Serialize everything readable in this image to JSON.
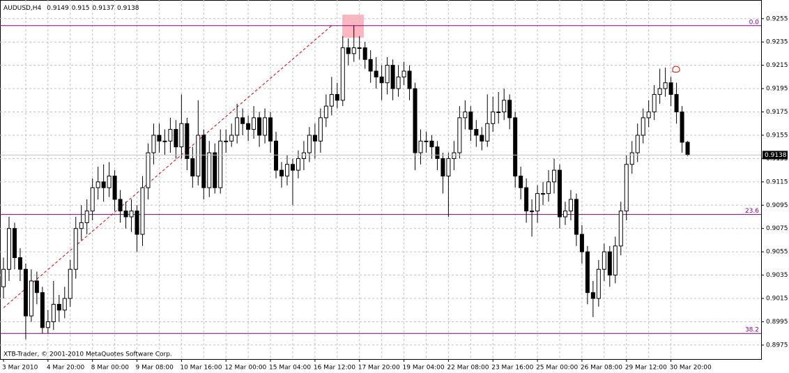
{
  "chart_data": {
    "type": "candlestick",
    "title": "AUDUSD,H4",
    "footer": "XTB-Trader, © 2001-2010 MetaQuotes Software Corp.",
    "categories": [
      "3 Mar 2010",
      null,
      null,
      null,
      null,
      null,
      null,
      null,
      "4 Mar 20:00",
      null,
      null,
      null,
      null,
      null,
      null,
      null,
      "8 Mar 00:00",
      null,
      null,
      null,
      null,
      null,
      null,
      null,
      "9 Mar 08:00",
      null,
      null,
      null,
      null,
      null,
      null,
      null,
      "10 Mar 16:00",
      null,
      null,
      null,
      null,
      null,
      null,
      null,
      "12 Mar 00:00",
      null,
      null,
      null,
      null,
      null,
      null,
      null,
      "15 Mar 04:00",
      null,
      null,
      null,
      null,
      null,
      null,
      null,
      "16 Mar 12:00",
      null,
      null,
      null,
      null,
      null,
      null,
      null,
      "17 Mar 20:00",
      null,
      null,
      null,
      null,
      null,
      null,
      null,
      "19 Mar 04:00",
      null,
      null,
      null,
      null,
      null,
      null,
      null,
      "22 Mar 08:00",
      null,
      null,
      null,
      null,
      null,
      null,
      null,
      "23 Mar 16:00",
      null,
      null,
      null,
      null,
      null,
      null,
      null,
      "25 Mar 00:00",
      null,
      null,
      null,
      null,
      null,
      null,
      null,
      "26 Mar 08:00",
      null,
      null,
      null,
      null,
      null,
      null,
      null,
      "29 Mar 12:00",
      null,
      null,
      null,
      null,
      null,
      null,
      null,
      "30 Mar 20:00",
      null,
      null,
      null
    ],
    "open": [
      0.9025,
      0.904,
      0.9075,
      0.905,
      0.904,
      0.9,
      0.903,
      0.902,
      0.899,
      0.8995,
      0.901,
      0.9005,
      0.9015,
      0.904,
      0.9075,
      0.908,
      0.909,
      0.911,
      0.9115,
      0.911,
      0.912,
      0.91,
      0.909,
      0.9085,
      0.909,
      0.907,
      0.911,
      0.914,
      0.9155,
      0.915,
      0.915,
      0.916,
      0.9145,
      0.9165,
      0.9135,
      0.912,
      0.9155,
      0.911,
      0.914,
      0.911,
      0.915,
      0.915,
      0.9155,
      0.917,
      0.9165,
      0.916,
      0.917,
      0.9155,
      0.917,
      0.915,
      0.9125,
      0.912,
      0.913,
      0.9125,
      0.9135,
      0.914,
      0.9155,
      0.915,
      0.917,
      0.918,
      0.919,
      0.9185,
      0.923,
      0.9225,
      0.923,
      0.923,
      0.922,
      0.921,
      0.9205,
      0.92,
      0.9215,
      0.9195,
      0.9205,
      0.921,
      0.9195,
      0.914,
      0.915,
      0.915,
      0.9145,
      0.9135,
      0.912,
      0.9135,
      0.914,
      0.917,
      0.9175,
      0.916,
      0.9155,
      0.915,
      0.9165,
      0.9175,
      0.9175,
      0.9185,
      0.917,
      0.912,
      0.911,
      0.909,
      0.909,
      0.9105,
      0.9105,
      0.9115,
      0.9125,
      0.9085,
      0.909,
      0.91,
      0.907,
      0.9055,
      0.902,
      0.9015,
      0.904,
      0.9055,
      0.9035,
      0.906,
      0.909,
      0.913,
      0.914,
      0.9155,
      0.917,
      0.9175,
      0.919,
      0.9195,
      0.92,
      0.919,
      0.9175,
      0.9149
    ],
    "high": [
      0.905,
      0.9085,
      0.908,
      0.9058,
      0.9045,
      0.904,
      0.9038,
      0.9025,
      0.9005,
      0.903,
      0.9018,
      0.9025,
      0.9048,
      0.9085,
      0.9095,
      0.91,
      0.9118,
      0.9128,
      0.913,
      0.9132,
      0.9125,
      0.9108,
      0.9098,
      0.91,
      0.9095,
      0.912,
      0.9148,
      0.9165,
      0.9165,
      0.916,
      0.917,
      0.9168,
      0.919,
      0.917,
      0.9145,
      0.9185,
      0.916,
      0.915,
      0.9148,
      0.916,
      0.916,
      0.9165,
      0.9182,
      0.9178,
      0.9172,
      0.918,
      0.9175,
      0.9178,
      0.9175,
      0.9158,
      0.9132,
      0.9138,
      0.9135,
      0.9142,
      0.915,
      0.9162,
      0.9165,
      0.9178,
      0.919,
      0.9205,
      0.92,
      0.924,
      0.9238,
      0.9249,
      0.924,
      0.9235,
      0.9228,
      0.9222,
      0.9215,
      0.9222,
      0.922,
      0.9215,
      0.9218,
      0.9215,
      0.92,
      0.916,
      0.9158,
      0.9155,
      0.915,
      0.914,
      0.914,
      0.915,
      0.918,
      0.9185,
      0.918,
      0.9168,
      0.9162,
      0.919,
      0.9188,
      0.9192,
      0.9195,
      0.919,
      0.9175,
      0.9128,
      0.9118,
      0.91,
      0.9112,
      0.9115,
      0.9125,
      0.9135,
      0.913,
      0.9098,
      0.9108,
      0.9105,
      0.9078,
      0.906,
      0.903,
      0.9048,
      0.9062,
      0.906,
      0.9068,
      0.9098,
      0.9138,
      0.915,
      0.9165,
      0.9178,
      0.9185,
      0.9198,
      0.9212,
      0.9213,
      0.9205,
      0.92,
      0.918,
      0.915
    ],
    "low": [
      0.9015,
      0.903,
      0.904,
      0.903,
      0.898,
      0.8995,
      0.901,
      0.8985,
      0.8985,
      0.8988,
      0.8995,
      0.8998,
      0.9008,
      0.9032,
      0.9065,
      0.907,
      0.9082,
      0.91,
      0.9098,
      0.9102,
      0.909,
      0.908,
      0.9075,
      0.9072,
      0.9055,
      0.906,
      0.91,
      0.913,
      0.914,
      0.9138,
      0.914,
      0.9135,
      0.9135,
      0.9125,
      0.911,
      0.9112,
      0.91,
      0.9102,
      0.9105,
      0.9105,
      0.914,
      0.9145,
      0.9148,
      0.9155,
      0.915,
      0.9152,
      0.9145,
      0.9148,
      0.914,
      0.9118,
      0.911,
      0.9112,
      0.9095,
      0.9118,
      0.9125,
      0.9132,
      0.9135,
      0.914,
      0.9162,
      0.9172,
      0.9178,
      0.918,
      0.9215,
      0.9218,
      0.922,
      0.9212,
      0.92,
      0.9195,
      0.9185,
      0.919,
      0.9185,
      0.9188,
      0.9198,
      0.9185,
      0.9125,
      0.913,
      0.914,
      0.9135,
      0.9125,
      0.9105,
      0.9085,
      0.9125,
      0.9135,
      0.916,
      0.915,
      0.9145,
      0.9142,
      0.9145,
      0.9158,
      0.9165,
      0.9168,
      0.916,
      0.911,
      0.91,
      0.908,
      0.9068,
      0.908,
      0.9095,
      0.9098,
      0.9105,
      0.9075,
      0.9078,
      0.9082,
      0.906,
      0.9045,
      0.901,
      0.8999,
      0.9008,
      0.903,
      0.9025,
      0.9028,
      0.9052,
      0.9082,
      0.9122,
      0.9132,
      0.9148,
      0.9162,
      0.9168,
      0.9182,
      0.9188,
      0.918,
      0.9165,
      0.914,
      0.9137
    ],
    "close": [
      0.904,
      0.9075,
      0.905,
      0.904,
      0.9,
      0.903,
      0.902,
      0.899,
      0.8995,
      0.901,
      0.9005,
      0.9015,
      0.904,
      0.9075,
      0.908,
      0.909,
      0.911,
      0.9115,
      0.911,
      0.912,
      0.91,
      0.909,
      0.9085,
      0.909,
      0.907,
      0.911,
      0.914,
      0.9155,
      0.915,
      0.915,
      0.916,
      0.9145,
      0.9165,
      0.9135,
      0.912,
      0.9155,
      0.911,
      0.914,
      0.911,
      0.915,
      0.915,
      0.9155,
      0.917,
      0.9165,
      0.916,
      0.917,
      0.9155,
      0.917,
      0.915,
      0.9125,
      0.912,
      0.913,
      0.9125,
      0.9135,
      0.914,
      0.9155,
      0.915,
      0.917,
      0.918,
      0.919,
      0.9185,
      0.923,
      0.9225,
      0.923,
      0.923,
      0.922,
      0.921,
      0.9205,
      0.92,
      0.9215,
      0.9195,
      0.9205,
      0.921,
      0.9195,
      0.914,
      0.915,
      0.915,
      0.9145,
      0.9135,
      0.912,
      0.9135,
      0.914,
      0.917,
      0.9175,
      0.916,
      0.9155,
      0.915,
      0.9165,
      0.9175,
      0.9175,
      0.9185,
      0.917,
      0.912,
      0.911,
      0.909,
      0.909,
      0.9105,
      0.9105,
      0.9115,
      0.9125,
      0.9085,
      0.909,
      0.91,
      0.907,
      0.9055,
      0.902,
      0.9015,
      0.904,
      0.9055,
      0.9035,
      0.906,
      0.909,
      0.913,
      0.914,
      0.9155,
      0.917,
      0.9175,
      0.919,
      0.9195,
      0.92,
      0.919,
      0.9175,
      0.9149,
      0.9138
    ],
    "ylim": [
      0.8963,
      0.9271
    ],
    "yticks": [
      0.9255,
      0.9235,
      0.9215,
      0.9195,
      0.9175,
      0.9155,
      0.9135,
      0.9115,
      0.9095,
      0.9075,
      0.9055,
      0.9035,
      0.9015,
      0.8995,
      0.8975
    ],
    "last_price": 0.9138,
    "levels": [
      {
        "label": "0.0",
        "value": 0.9249
      },
      {
        "label": "23.6",
        "value": 0.9087
      },
      {
        "label": "38.2",
        "value": 0.8985
      }
    ],
    "level_color": "#800080",
    "trendline": {
      "color": "#e00000",
      "start": [
        0,
        0.9007
      ],
      "end": [
        59,
        0.9249
      ]
    },
    "grid": true
  }
}
